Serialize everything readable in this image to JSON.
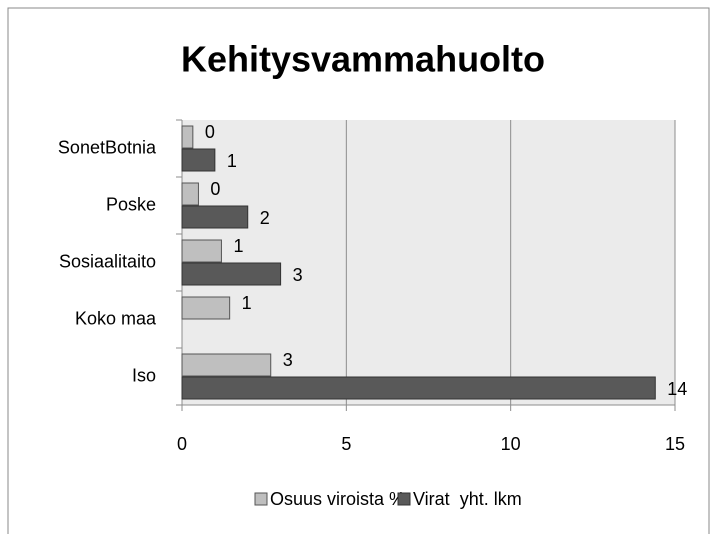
{
  "chart_data": {
    "type": "hbar",
    "title": "Kehitysvammahuolto",
    "categories": [
      "SonetBotnia",
      "Poske",
      "Sosiaalitaito",
      "Koko maa",
      "Iso"
    ],
    "series": [
      {
        "name": "Osuus viroista %",
        "color": "#bfbfbf",
        "values": [
          0.33,
          0.5,
          1.2,
          1.45,
          2.7
        ],
        "value_labels": [
          "0",
          "0",
          "1",
          "1",
          "3"
        ]
      },
      {
        "name": "Virat  yht. lkm",
        "color": "#595959",
        "values": [
          1,
          2,
          3,
          null,
          14.4
        ],
        "value_labels": [
          "1",
          "2",
          "3",
          null,
          "14"
        ]
      }
    ],
    "xlim": [
      0,
      15
    ],
    "xticks": [
      0,
      5,
      10,
      15
    ],
    "grid": true,
    "legend": "bottom"
  }
}
